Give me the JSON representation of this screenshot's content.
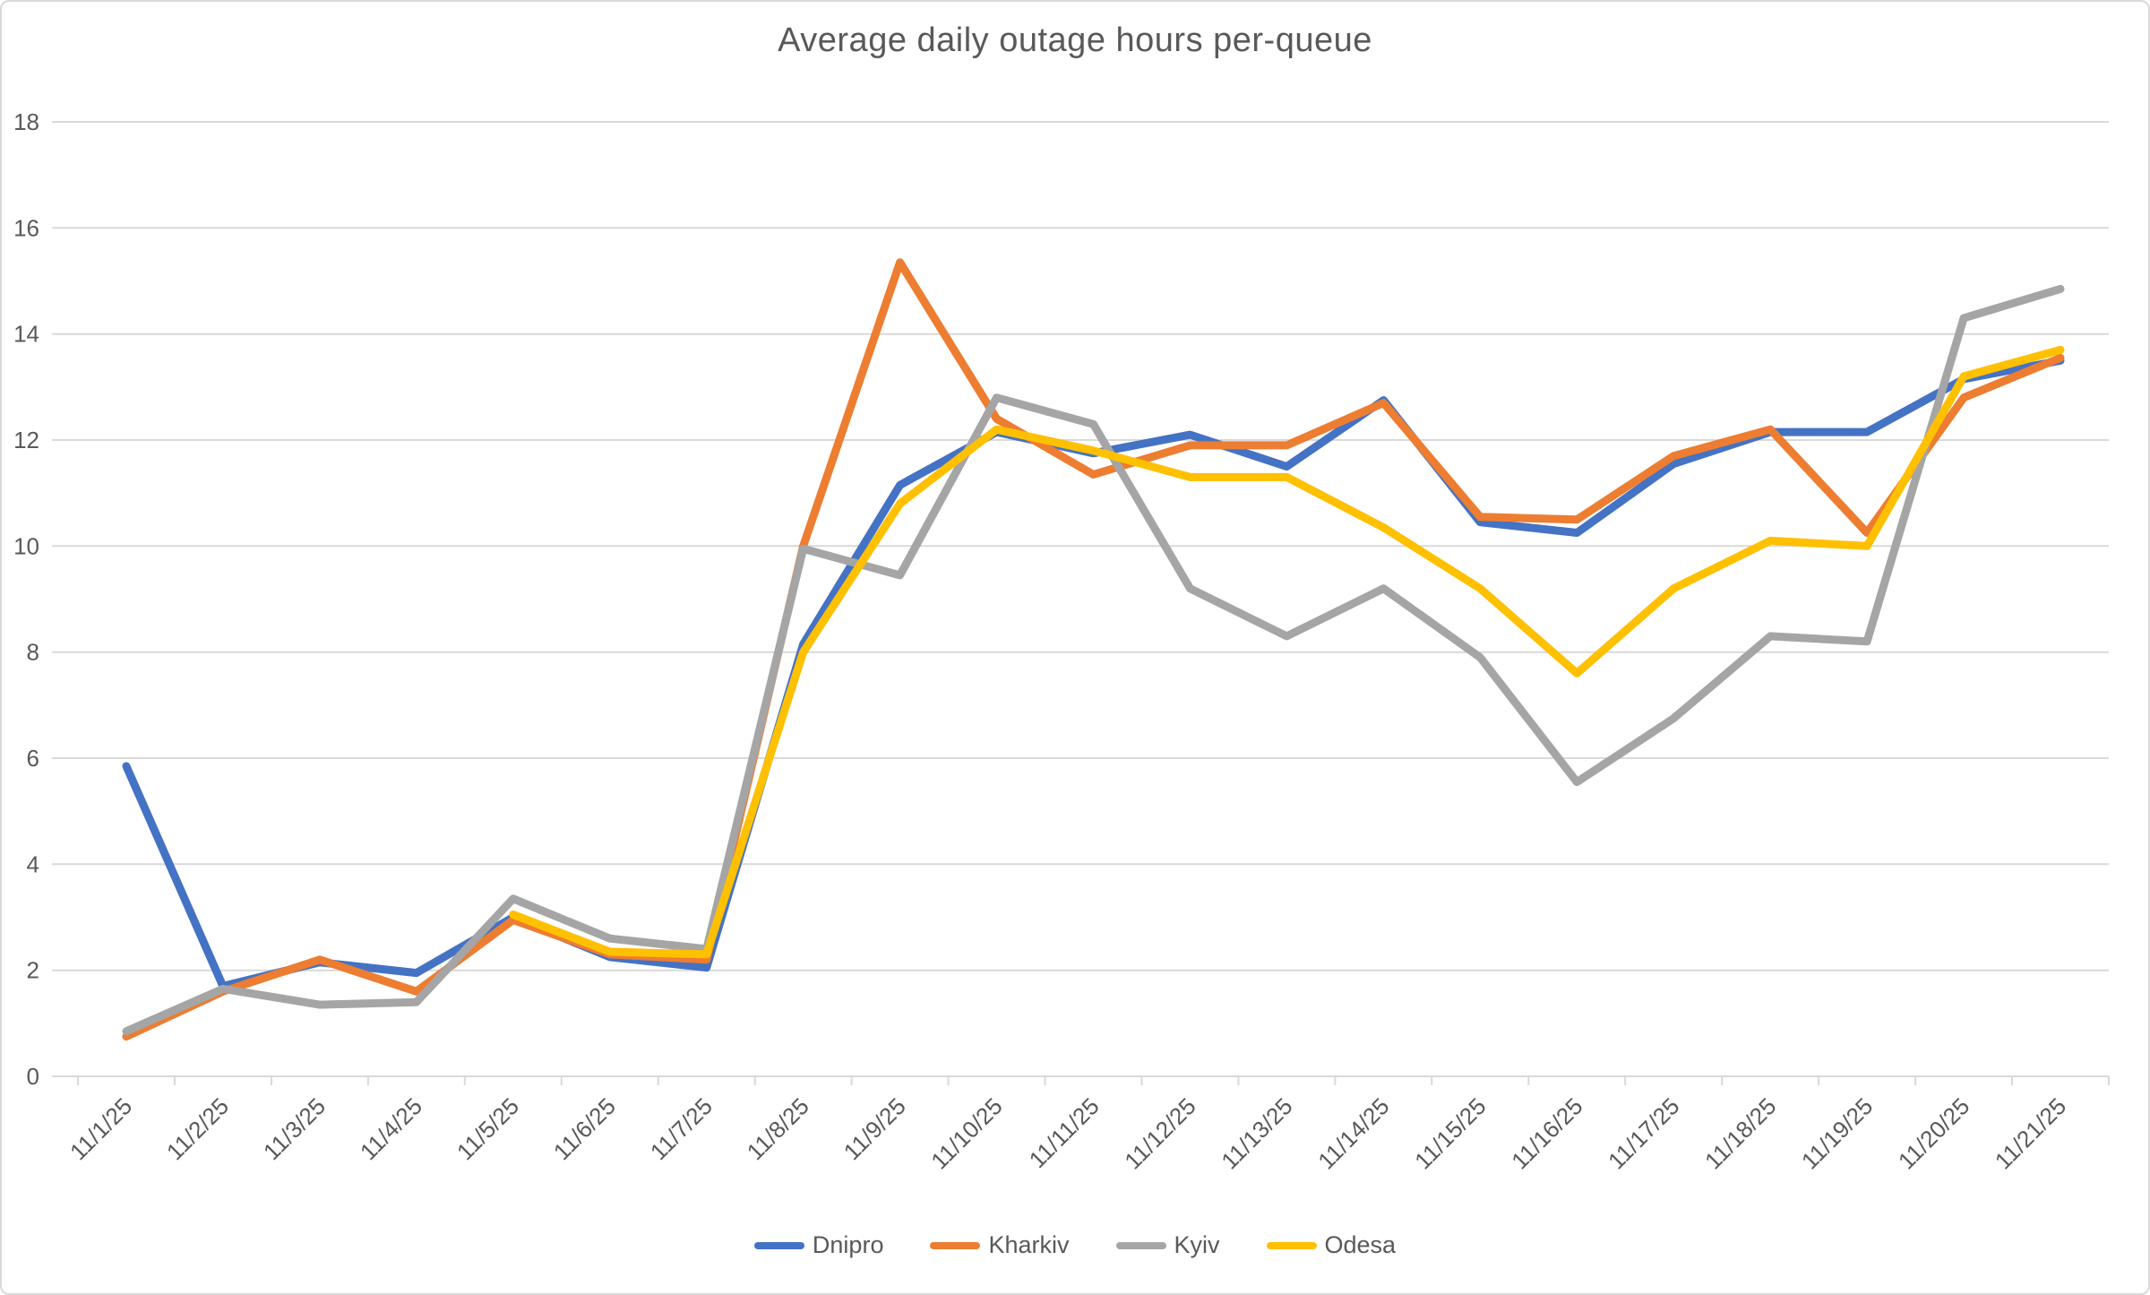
{
  "chart_data": {
    "type": "line",
    "title": "Average daily outage hours per-queue",
    "categories": [
      "11/1/25",
      "11/2/25",
      "11/3/25",
      "11/4/25",
      "11/5/25",
      "11/6/25",
      "11/7/25",
      "11/8/25",
      "11/9/25",
      "11/10/25",
      "11/11/25",
      "11/12/25",
      "11/13/25",
      "11/14/25",
      "11/15/25",
      "11/16/25",
      "11/17/25",
      "11/18/25",
      "11/19/25",
      "11/20/25",
      "11/21/25"
    ],
    "series": [
      {
        "name": "Dnipro",
        "color": "#4472C4",
        "values": [
          5.85,
          1.7,
          2.15,
          1.95,
          3.0,
          2.25,
          2.05,
          8.15,
          11.15,
          12.15,
          11.75,
          12.1,
          11.5,
          12.75,
          10.45,
          10.25,
          11.55,
          12.15,
          12.15,
          13.15,
          13.5
        ]
      },
      {
        "name": "Kharkiv",
        "color": "#ED7D31",
        "values": [
          0.75,
          1.6,
          2.2,
          1.6,
          2.95,
          2.3,
          2.2,
          10.0,
          15.35,
          12.4,
          11.35,
          11.9,
          11.9,
          12.7,
          10.55,
          10.5,
          11.7,
          12.2,
          10.25,
          12.8,
          13.55
        ]
      },
      {
        "name": "Kyiv",
        "color": "#A5A5A5",
        "values": [
          0.85,
          1.65,
          1.35,
          1.4,
          3.35,
          2.6,
          2.4,
          9.95,
          9.45,
          12.8,
          12.3,
          9.2,
          8.3,
          9.2,
          7.9,
          5.55,
          6.75,
          8.3,
          8.2,
          14.3,
          14.85
        ]
      },
      {
        "name": "Odesa",
        "color": "#FFC000",
        "values": [
          null,
          null,
          null,
          null,
          3.05,
          2.35,
          2.3,
          8.0,
          10.8,
          12.2,
          11.8,
          11.3,
          11.3,
          10.35,
          9.2,
          7.6,
          9.2,
          10.1,
          10.0,
          13.2,
          13.7
        ]
      }
    ],
    "y_ticks": [
      0,
      2,
      4,
      6,
      8,
      10,
      12,
      14,
      16,
      18
    ],
    "ylim": [
      0,
      18
    ],
    "xlabel": "",
    "ylabel": "",
    "grid": true,
    "legend_position": "bottom"
  },
  "colors": {
    "text": "#595959",
    "grid": "#D9D9D9",
    "background": "#FFFFFF"
  }
}
